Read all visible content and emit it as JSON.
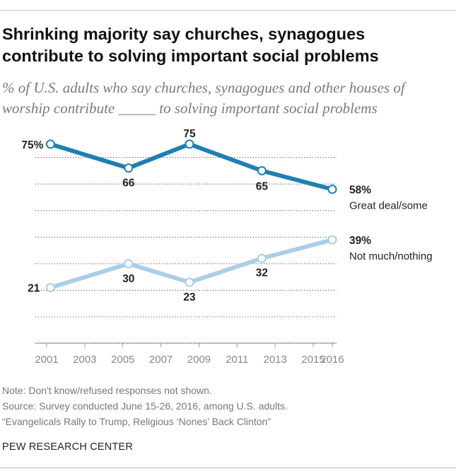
{
  "title": "Shrinking majority say churches, synagogues contribute to solving important social problems",
  "subtitle": "% of U.S. adults who say churches, synagogues and other houses of worship contribute _____ to solving important social problems",
  "notes": [
    "Note: Don't know/refused responses not shown.",
    "Source: Survey conducted June 15-26, 2016, among U.S. adults.",
    "“Evangelicals Rally to Trump, Religious ‘Nones’ Back Clinton”"
  ],
  "credit": "PEW RESEARCH CENTER",
  "chart_data": {
    "type": "line",
    "x_ticks": [
      2001,
      2003,
      2005,
      2007,
      2009,
      2011,
      2013,
      2015,
      2016
    ],
    "xlim": [
      2001,
      2016
    ],
    "ylim": [
      0,
      80
    ],
    "grid": true,
    "series": [
      {
        "name": "Great deal/some",
        "color": "#1f7fb0",
        "points": [
          {
            "x": 2001.2,
            "y": 75,
            "label": "75%"
          },
          {
            "x": 2005.3,
            "y": 66,
            "label": "66"
          },
          {
            "x": 2008.5,
            "y": 75,
            "label": "75"
          },
          {
            "x": 2012.3,
            "y": 65,
            "label": "65"
          },
          {
            "x": 2016,
            "y": 58,
            "label": "58%"
          }
        ]
      },
      {
        "name": "Not much/nothing",
        "color": "#a9cfe6",
        "points": [
          {
            "x": 2001.2,
            "y": 21,
            "label": "21"
          },
          {
            "x": 2005.3,
            "y": 30,
            "label": "30"
          },
          {
            "x": 2008.5,
            "y": 23,
            "label": "23"
          },
          {
            "x": 2012.3,
            "y": 32,
            "label": "32"
          },
          {
            "x": 2016,
            "y": 39,
            "label": "39%"
          }
        ]
      }
    ]
  }
}
